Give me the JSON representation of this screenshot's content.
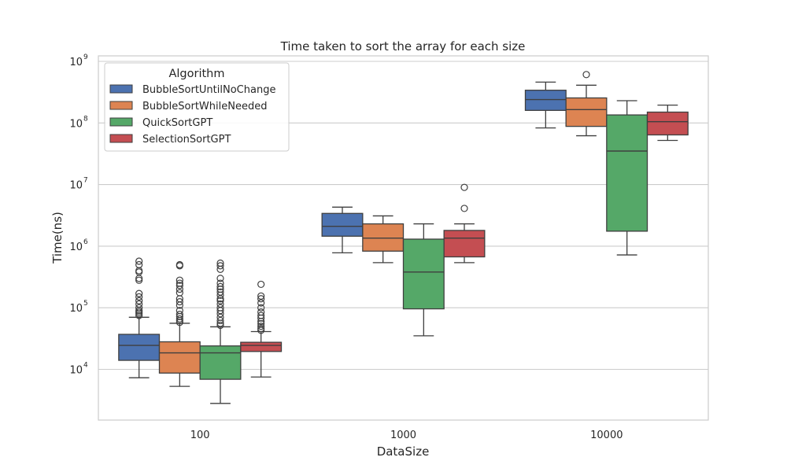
{
  "chart_data": {
    "type": "box",
    "title": "Time taken to sort the array for each size",
    "xlabel": "DataSize",
    "ylabel": "Time(ns)",
    "yscale": "log",
    "ylim": [
      1500,
      1000000000
    ],
    "grid": true,
    "categories": [
      "100",
      "1000",
      "10000"
    ],
    "legend": {
      "title": "Algorithm",
      "placement": "top-left"
    },
    "y_ticks": [
      {
        "base": "10",
        "exp": "4",
        "value": 10000
      },
      {
        "base": "10",
        "exp": "5",
        "value": 100000
      },
      {
        "base": "10",
        "exp": "6",
        "value": 1000000
      },
      {
        "base": "10",
        "exp": "7",
        "value": 10000000
      },
      {
        "base": "10",
        "exp": "8",
        "value": 100000000
      },
      {
        "base": "10",
        "exp": "9",
        "value": 1000000000
      }
    ],
    "series": [
      {
        "name": "BubbleSortUntilNoChange",
        "color": "#4c72b0",
        "boxes": [
          {
            "whislo": 7300,
            "q1": 14000,
            "med": 24500,
            "q3": 37000,
            "whishi": 70000,
            "fliers": [
              75000,
              80000,
              85000,
              90000,
              100000,
              115000,
              130000,
              150000,
              170000,
              280000,
              300000,
              380000,
              400000,
              500000,
              570000
            ]
          },
          {
            "whislo": 780000,
            "q1": 1450000,
            "med": 2100000,
            "q3": 3400000,
            "whishi": 4300000,
            "fliers": []
          },
          {
            "whislo": 83000000,
            "q1": 160000000,
            "med": 240000000,
            "q3": 340000000,
            "whishi": 460000000,
            "fliers": []
          }
        ]
      },
      {
        "name": "BubbleSortWhileNeeded",
        "color": "#dd8452",
        "boxes": [
          {
            "whislo": 5300,
            "q1": 8700,
            "med": 18500,
            "q3": 28000,
            "whishi": 56000,
            "fliers": [
              58000,
              62000,
              66000,
              72000,
              78000,
              90000,
              110000,
              125000,
              140000,
              175000,
              200000,
              230000,
              250000,
              280000,
              480000,
              500000
            ]
          },
          {
            "whislo": 540000,
            "q1": 830000,
            "med": 1350000,
            "q3": 2300000,
            "whishi": 3100000,
            "fliers": []
          },
          {
            "whislo": 62000000,
            "q1": 88000000,
            "med": 165000000,
            "q3": 255000000,
            "whishi": 410000000,
            "fliers": [
              610000000
            ]
          }
        ]
      },
      {
        "name": "QuickSortGPT",
        "color": "#55a868",
        "boxes": [
          {
            "whislo": 2800,
            "q1": 6900,
            "med": 18500,
            "q3": 24000,
            "whishi": 49000,
            "fliers": [
              52000,
              56000,
              62000,
              70000,
              80000,
              90000,
              100000,
              115000,
              130000,
              140000,
              160000,
              180000,
              200000,
              220000,
              250000,
              300000,
              420000,
              480000,
              530000
            ]
          },
          {
            "whislo": 35000,
            "q1": 96000,
            "med": 380000,
            "q3": 1300000,
            "whishi": 2300000,
            "fliers": []
          },
          {
            "whislo": 720000,
            "q1": 1750000,
            "med": 35000000,
            "q3": 135000000,
            "whishi": 230000000,
            "fliers": []
          }
        ]
      },
      {
        "name": "SelectionSortGPT",
        "color": "#c44e52",
        "boxes": [
          {
            "whislo": 7500,
            "q1": 19500,
            "med": 24500,
            "q3": 27500,
            "whishi": 41000,
            "fliers": [
              43000,
              46000,
              50000,
              55000,
              60000,
              68000,
              75000,
              85000,
              100000,
              120000,
              140000,
              155000,
              240000
            ]
          },
          {
            "whislo": 540000,
            "q1": 670000,
            "med": 1350000,
            "q3": 1800000,
            "whishi": 2300000,
            "fliers": [
              4100000,
              9000000
            ]
          },
          {
            "whislo": 52000000,
            "q1": 64000000,
            "med": 105000000,
            "q3": 150000000,
            "whishi": 195000000,
            "fliers": []
          }
        ]
      }
    ]
  }
}
